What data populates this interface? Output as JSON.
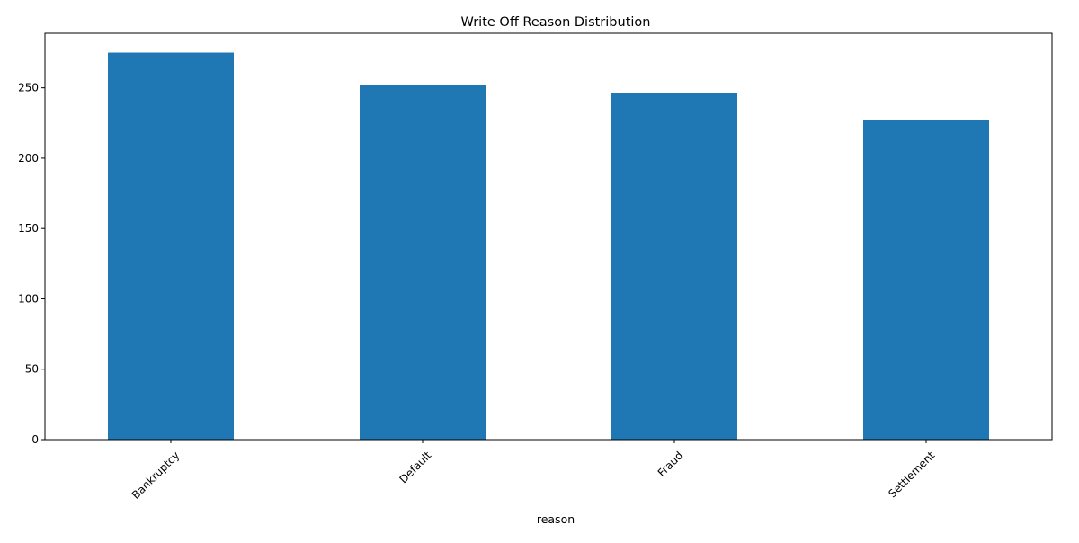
{
  "chart_data": {
    "type": "bar",
    "title": "Write Off Reason Distribution",
    "xlabel": "reason",
    "ylabel": "",
    "categories": [
      "Bankruptcy",
      "Default",
      "Fraud",
      "Settlement"
    ],
    "values": [
      275,
      252,
      246,
      227
    ],
    "ylim": [
      0,
      288.75
    ],
    "yticks": [
      0,
      50,
      100,
      150,
      200,
      250
    ],
    "xtick_rotation": 45,
    "grid": false,
    "legend": "none",
    "bar_color": "#1f77b4"
  }
}
